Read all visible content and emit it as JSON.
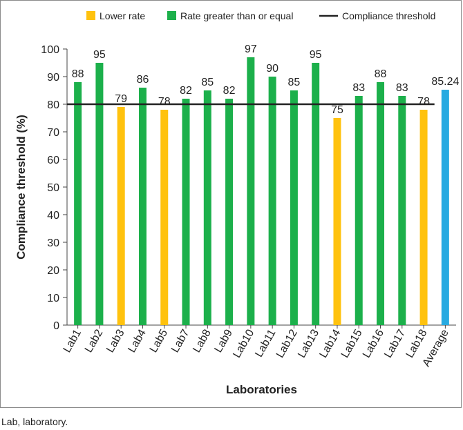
{
  "chart_data": {
    "type": "bar",
    "categories": [
      "Lab1",
      "Lab2",
      "Lab3",
      "Lab4",
      "Lab5",
      "Lab7",
      "Lab8",
      "Lab9",
      "Lab10",
      "Lab11",
      "Lab12",
      "Lab13",
      "Lab14",
      "Lab15",
      "Lab16",
      "Lab17",
      "Lab18",
      "Average"
    ],
    "values": [
      88,
      95,
      79,
      86,
      78,
      82,
      85,
      82,
      97,
      90,
      85,
      95,
      75,
      83,
      88,
      83,
      78,
      85.24
    ],
    "value_labels": [
      "88",
      "95",
      "79",
      "86",
      "78",
      "82",
      "85",
      "82",
      "97",
      "90",
      "85",
      "95",
      "75",
      "83",
      "88",
      "83",
      "78",
      "85.24"
    ],
    "bar_groups": [
      "green",
      "green",
      "yellow",
      "green",
      "yellow",
      "green",
      "green",
      "green",
      "green",
      "green",
      "green",
      "green",
      "yellow",
      "green",
      "green",
      "green",
      "yellow",
      "average"
    ],
    "threshold": 80,
    "title": "",
    "xlabel": "Laboratories",
    "ylabel": "Compliance threshold (%)",
    "ylim": [
      0,
      100
    ],
    "yticks": [
      0,
      10,
      20,
      30,
      40,
      50,
      60,
      70,
      80,
      90,
      100
    ],
    "legend": {
      "position": "top",
      "items": [
        {
          "key": "yellow",
          "label": "Lower rate",
          "kind": "box"
        },
        {
          "key": "green",
          "label": "Rate greater than or equal",
          "kind": "box"
        },
        {
          "key": "threshold",
          "label": "Compliance threshold",
          "kind": "line"
        }
      ]
    },
    "colors": {
      "yellow": "#FFC20E",
      "green": "#1CB04B",
      "average": "#27AAE1",
      "threshold": "#222222"
    },
    "grid": false
  },
  "footnote": "Lab, laboratory."
}
